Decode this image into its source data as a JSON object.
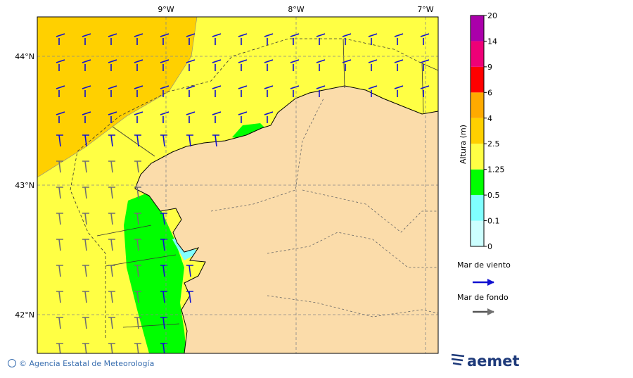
{
  "map": {
    "lon_labels": [
      "9°W",
      "8°W",
      "7°W"
    ],
    "lat_labels": [
      "44°N",
      "43°N",
      "42°N"
    ]
  },
  "colorbar": {
    "label": "Altura (m)",
    "levels": [
      0,
      0.1,
      0.5,
      1.25,
      2.5,
      4,
      6,
      9,
      14,
      20
    ],
    "colors": [
      "#ccffff",
      "#80ffff",
      "#00ff00",
      "#ffff44",
      "#ffd000",
      "#ffaa00",
      "#ff0000",
      "#ee0077",
      "#aa00aa"
    ]
  },
  "legend": {
    "wind_sea": "Mar de viento",
    "swell": "Mar de fondo"
  },
  "footer": {
    "credit": "© Agencia Estatal de Meteorología",
    "logo": "aemet"
  }
}
